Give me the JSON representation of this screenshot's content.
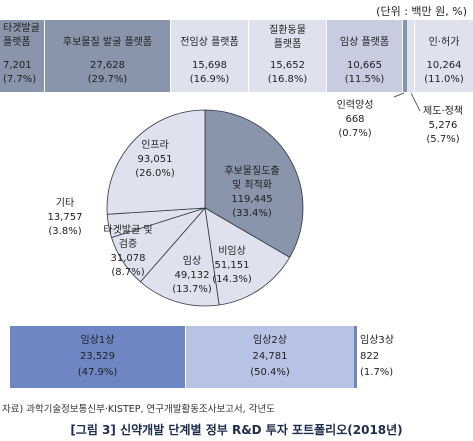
{
  "unit_note": "(단위 : 백만 원, %)",
  "source_note": "자료) 과학기술정보통신부·KISTEP, 연구개발활동조사보고서, 각년도",
  "caption": "[그림 3] 신약개발 단계별 정부 R&D 투자 포트폴리오(2018년)",
  "colors": {
    "dark": "#8995ab",
    "light": "#dfe2ee",
    "mid": "#c7cce0",
    "blue": "#6f86c4",
    "lightblue": "#b7c3e4"
  },
  "chart_data": [
    {
      "type": "table",
      "categories": [
        {
          "lines": [
            "타겟발굴",
            "플랫폼"
          ],
          "value": "7,201",
          "share": "(7.7%)"
        },
        {
          "lines": [
            "후보물질 발굴 플랫폼"
          ],
          "value": "27,628",
          "share": "(29.7%)"
        },
        {
          "lines": [
            "전임상 플랫폼"
          ],
          "value": "15,698",
          "share": "(16.9%)"
        },
        {
          "lines": [
            "질환동물",
            "플랫폼"
          ],
          "value": "15,652",
          "share": "(16.8%)"
        },
        {
          "lines": [
            "임상 플랫폼"
          ],
          "value": "10,665",
          "share": "(11.5%)"
        },
        {
          "lines": [
            "인·허가"
          ],
          "value": "10,264",
          "share": "(11.0%)"
        }
      ],
      "callouts": [
        {
          "label": "인력양성",
          "value": "668",
          "share": "(0.7%)"
        },
        {
          "label": "제도·정책",
          "value": "5,276",
          "share": "(5.7%)"
        }
      ]
    },
    {
      "type": "pie",
      "slices": [
        {
          "lines": [
            "후보물질도출",
            "및 최적화"
          ],
          "value": "119,445",
          "share": "(33.4%)",
          "v": 119445
        },
        {
          "lines": [
            "비임상"
          ],
          "value": "51,151",
          "share": "(14.3%)",
          "v": 51151
        },
        {
          "lines": [
            "임상"
          ],
          "value": "49,132",
          "share": "(13.7%)",
          "v": 49132
        },
        {
          "lines": [
            "타겟발굴 및",
            "검증"
          ],
          "value": "31,078",
          "share": "(8.7%)",
          "v": 31078
        },
        {
          "lines": [
            "기타"
          ],
          "value": "13,757",
          "share": "(3.8%)",
          "v": 13757
        },
        {
          "lines": [
            "인프라"
          ],
          "value": "93,051",
          "share": "(26.0%)",
          "v": 93051
        }
      ]
    },
    {
      "type": "table",
      "categories": [
        {
          "label": "임상1상",
          "value": "23,529",
          "share": "(47.9%)"
        },
        {
          "label": "임상2상",
          "value": "24,781",
          "share": "(50.4%)"
        },
        {
          "label": "임상3상",
          "value": "822",
          "share": "(1.7%)"
        }
      ]
    }
  ]
}
